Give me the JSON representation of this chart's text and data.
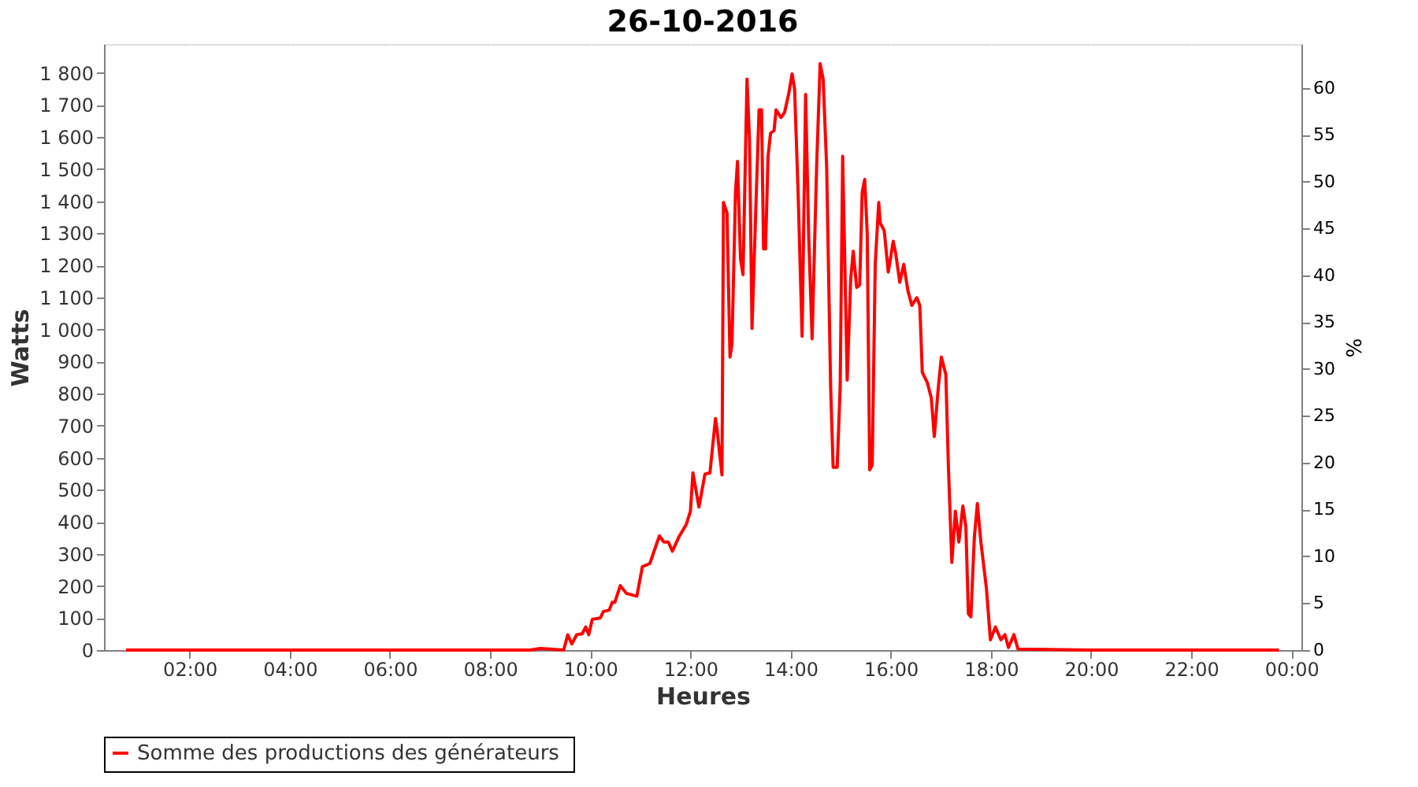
{
  "chart_data": {
    "type": "line",
    "title": "26-10-2016",
    "xlabel": "Heures",
    "ylabel": "Watts",
    "y2label": "%",
    "x": [
      0.73,
      3.0,
      6.0,
      8.8,
      9.0,
      9.2,
      9.47,
      9.55,
      9.63,
      9.73,
      9.84,
      9.91,
      9.97,
      10.04,
      10.2,
      10.26,
      10.38,
      10.44,
      10.49,
      10.6,
      10.72,
      10.93,
      11.04,
      11.19,
      11.38,
      11.47,
      11.56,
      11.64,
      11.77,
      11.92,
      12.0,
      12.05,
      12.17,
      12.29,
      12.39,
      12.5,
      12.53,
      12.63,
      12.66,
      12.73,
      12.79,
      12.83,
      12.9,
      12.94,
      13.0,
      13.05,
      13.13,
      13.18,
      13.23,
      13.29,
      13.37,
      13.42,
      13.46,
      13.5,
      13.55,
      13.6,
      13.67,
      13.71,
      13.81,
      13.88,
      13.96,
      14.03,
      14.08,
      14.15,
      14.23,
      14.3,
      14.36,
      14.43,
      14.52,
      14.59,
      14.65,
      14.72,
      14.8,
      14.85,
      14.93,
      14.99,
      15.04,
      15.13,
      15.2,
      15.25,
      15.32,
      15.38,
      15.43,
      15.48,
      15.53,
      15.58,
      15.63,
      15.69,
      15.76,
      15.79,
      15.87,
      15.95,
      16.05,
      16.1,
      16.18,
      16.26,
      16.34,
      16.42,
      16.52,
      16.58,
      16.63,
      16.73,
      16.81,
      16.87,
      16.94,
      17.01,
      17.1,
      17.15,
      17.22,
      17.29,
      17.36,
      17.44,
      17.5,
      17.55,
      17.6,
      17.67,
      17.73,
      17.8,
      17.91,
      17.99,
      18.09,
      18.2,
      18.28,
      18.35,
      18.46,
      18.54,
      20.0,
      22.0,
      23.75
    ],
    "series": [
      {
        "name": "Somme des productions des  générateurs",
        "color": "#ff0000",
        "values": [
          0,
          0,
          0,
          0,
          5,
          3,
          0,
          48,
          19,
          48,
          51,
          72,
          48,
          96,
          100,
          120,
          125,
          149,
          149,
          201,
          177,
          168,
          260,
          270,
          356,
          337,
          337,
          308,
          353,
          393,
          433,
          553,
          446,
          549,
          553,
          722,
          690,
          546,
          1396,
          1364,
          914,
          955,
          1428,
          1524,
          1220,
          1171,
          1781,
          1588,
          1003,
          1300,
          1685,
          1685,
          1251,
          1251,
          1540,
          1612,
          1620,
          1685,
          1661,
          1677,
          1733,
          1797,
          1749,
          1428,
          979,
          1733,
          1300,
          971,
          1508,
          1829,
          1781,
          1508,
          818,
          570,
          570,
          818,
          1540,
          842,
          1155,
          1244,
          1131,
          1139,
          1428,
          1468,
          1300,
          562,
          578,
          1203,
          1396,
          1332,
          1308,
          1179,
          1275,
          1236,
          1147,
          1203,
          1123,
          1075,
          1099,
          1075,
          866,
          834,
          786,
          666,
          802,
          914,
          859,
          578,
          273,
          433,
          337,
          449,
          385,
          113,
          104,
          353,
          457,
          337,
          193,
          32,
          72,
          32,
          48,
          8,
          48,
          3,
          0,
          0,
          0
        ]
      }
    ],
    "xlim": [
      0.29,
      24.2
    ],
    "xticks": [
      {
        "value": 2,
        "label": "02:00"
      },
      {
        "value": 4,
        "label": "04:00"
      },
      {
        "value": 6,
        "label": "06:00"
      },
      {
        "value": 8,
        "label": "08:00"
      },
      {
        "value": 10,
        "label": "10:00"
      },
      {
        "value": 12,
        "label": "12:00"
      },
      {
        "value": 14,
        "label": "14:00"
      },
      {
        "value": 16,
        "label": "16:00"
      },
      {
        "value": 18,
        "label": "18:00"
      },
      {
        "value": 20,
        "label": "20:00"
      },
      {
        "value": 22,
        "label": "22:00"
      },
      {
        "value": 24,
        "label": "00:00"
      }
    ],
    "ylim": [
      0,
      1890
    ],
    "yticks": [
      0,
      100,
      200,
      300,
      400,
      500,
      600,
      700,
      800,
      900,
      {
        "value": 1000,
        "label": "1 000"
      },
      {
        "value": 1100,
        "label": "1 100"
      },
      {
        "value": 1200,
        "label": "1 200"
      },
      {
        "value": 1300,
        "label": "1 300"
      },
      {
        "value": 1400,
        "label": "1 400"
      },
      {
        "value": 1500,
        "label": "1 500"
      },
      {
        "value": 1600,
        "label": "1 600"
      },
      {
        "value": 1700,
        "label": "1 700"
      },
      {
        "value": 1800,
        "label": "1 800"
      }
    ],
    "y2lim": [
      0,
      64.7
    ],
    "y2ticks": [
      0,
      5,
      10,
      15,
      20,
      25,
      30,
      35,
      40,
      45,
      50,
      55,
      60
    ],
    "grid": true,
    "legend": "bottom",
    "marker": "none",
    "line_style": "solid"
  }
}
